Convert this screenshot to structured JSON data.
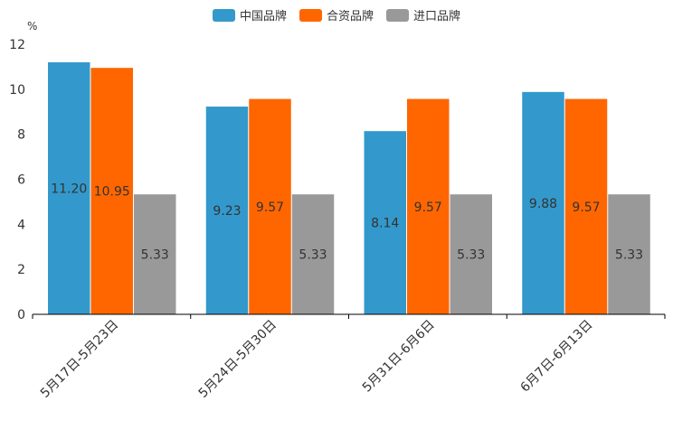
{
  "chart_data": {
    "type": "bar",
    "title": "",
    "xlabel": "",
    "ylabel": "%",
    "ylim": [
      0,
      12
    ],
    "yticks": [
      0,
      2,
      4,
      6,
      8,
      10,
      12
    ],
    "legend_position": "top-center",
    "categories": [
      "5月17日-5月23日",
      "5月24日-5月30日",
      "5月31日-6月6日",
      "6月7日-6月13日"
    ],
    "series": [
      {
        "name": "中国品牌",
        "color": "#3399cc",
        "values": [
          11.2,
          9.23,
          8.14,
          9.88
        ],
        "labels": [
          "11.20",
          "9.23",
          "8.14",
          "9.88"
        ]
      },
      {
        "name": "合资品牌",
        "color": "#ff6600",
        "values": [
          10.95,
          9.57,
          9.57,
          9.57
        ],
        "labels": [
          "10.95",
          "9.57",
          "9.57",
          "9.57"
        ]
      },
      {
        "name": "进口品牌",
        "color": "#999999",
        "values": [
          5.33,
          5.33,
          5.33,
          5.33
        ],
        "labels": [
          "5.33",
          "5.33",
          "5.33",
          "5.33"
        ]
      }
    ]
  }
}
